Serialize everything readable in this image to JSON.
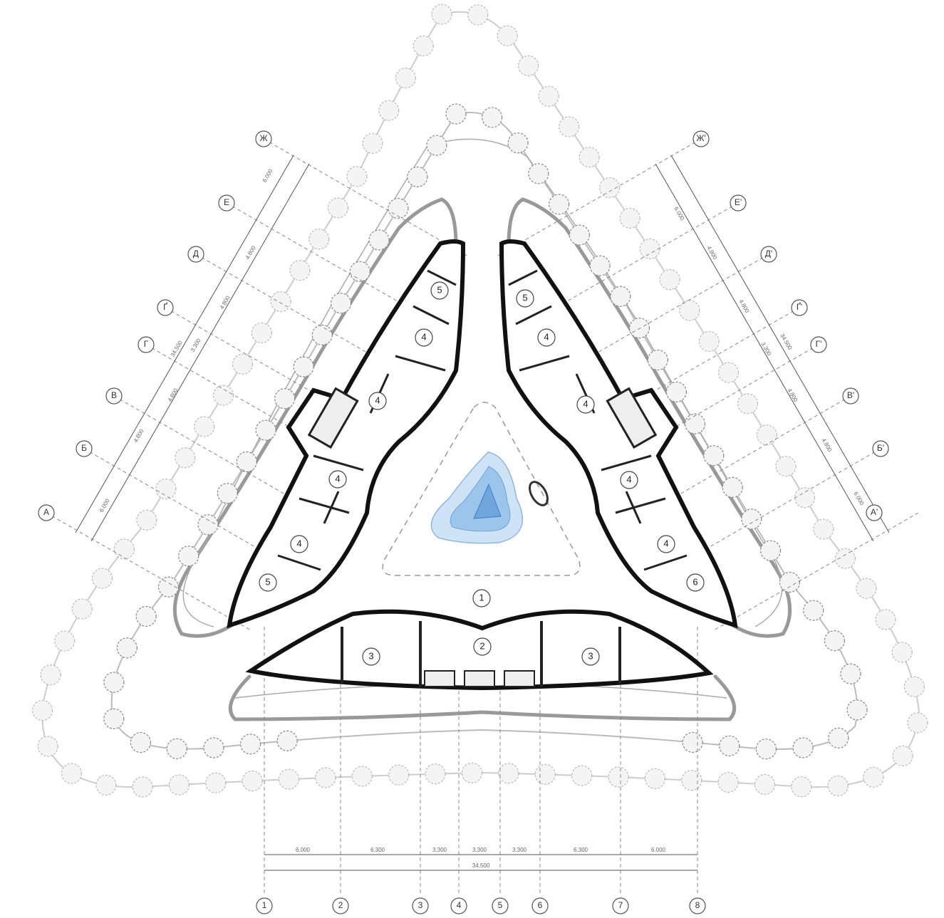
{
  "left_axes": [
    "А",
    "Б",
    "В",
    "Г",
    "Ґ",
    "Д",
    "Е",
    "Ж"
  ],
  "left_dimensions": [
    "6.000",
    "4.800",
    "4.800",
    "3.300",
    "4.800",
    "4.800",
    "6.000"
  ],
  "left_total": "34.500",
  "right_axes": [
    "А'",
    "Б'",
    "В'",
    "Г'",
    "Ґ'",
    "Д'",
    "Е'",
    "Ж'"
  ],
  "right_dimensions": [
    "6.000",
    "4.800",
    "4.800",
    "3.300",
    "4.800",
    "4.800",
    "6.000"
  ],
  "right_total": "34.500",
  "bottom_axes": [
    "1",
    "2",
    "3",
    "4",
    "5",
    "6",
    "7",
    "8"
  ],
  "bottom_dimensions": [
    "6.000",
    "6.300",
    "3.300",
    "3.300",
    "3.300",
    "6.300",
    "6.000"
  ],
  "bottom_total": "34.500",
  "rooms": [
    "1",
    "2",
    "3",
    "3",
    "5",
    "4",
    "4",
    "4",
    "4",
    "5",
    "5",
    "4",
    "4",
    "4",
    "4",
    "6"
  ]
}
